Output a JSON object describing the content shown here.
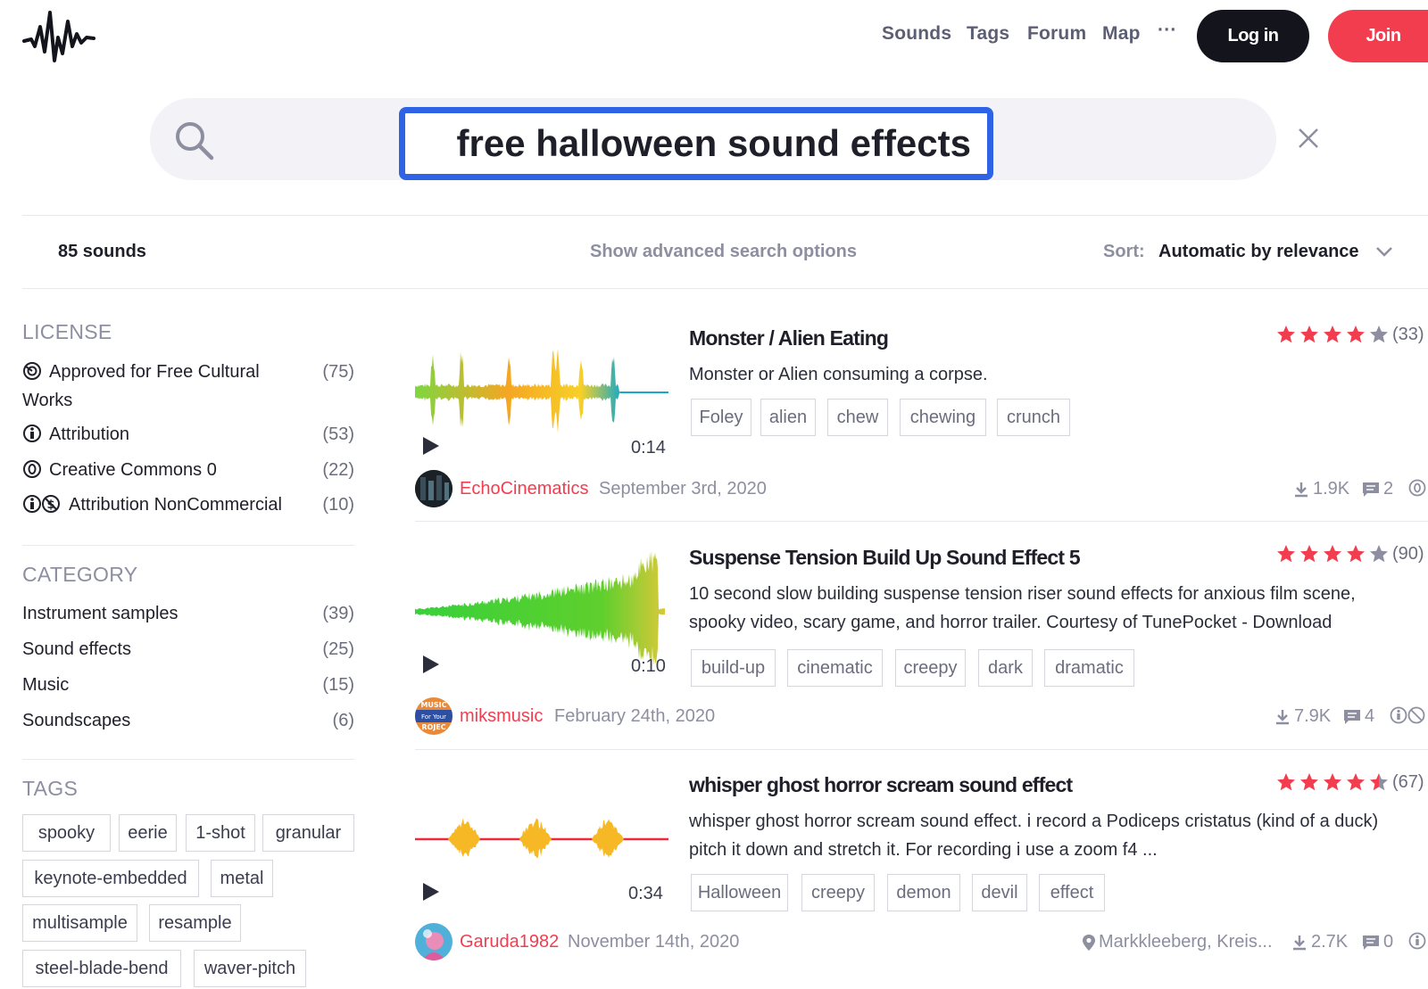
{
  "nav": {
    "links": [
      "Sounds",
      "Tags",
      "Forum",
      "Map"
    ],
    "more": "···",
    "login_label": "Log in",
    "join_label": "Join"
  },
  "search": {
    "query": "free halloween sound effects"
  },
  "results_bar": {
    "count": "85 sounds",
    "advanced": "Show advanced search options",
    "sort_label": "Sort:",
    "sort_value": "Automatic by relevance"
  },
  "sidebar": {
    "license": {
      "title": "LICENSE",
      "items": [
        {
          "label_line1": "Approved for Free Cultural",
          "label_line2": "Works",
          "count": "(75)",
          "icon": "free-culture-icon"
        },
        {
          "label": "Attribution",
          "count": "(53)",
          "icon": "attribution-icon"
        },
        {
          "label": "Creative Commons 0",
          "count": "(22)",
          "icon": "cc0-icon"
        },
        {
          "label": "Attribution NonCommercial",
          "count": "(10)",
          "icon": "attribution-noncommercial-icon"
        }
      ]
    },
    "category": {
      "title": "CATEGORY",
      "items": [
        {
          "label": "Instrument samples",
          "count": "(39)"
        },
        {
          "label": "Sound effects",
          "count": "(25)"
        },
        {
          "label": "Music",
          "count": "(15)"
        },
        {
          "label": "Soundscapes",
          "count": "(6)"
        }
      ]
    },
    "tags": {
      "title": "TAGS",
      "items": [
        "spooky",
        "eerie",
        "1-shot",
        "granular",
        "keynote-embedded",
        "metal",
        "multisample",
        "resample",
        "steel-blade-bend",
        "waver-pitch"
      ]
    }
  },
  "colors": {
    "accent": "#f23d4f",
    "search_focus": "#2f63e6",
    "dark": "#14151c"
  },
  "results": [
    {
      "title": "Monster / Alien Eating",
      "description": [
        "Monster or Alien consuming a corpse."
      ],
      "tags": [
        "Foley",
        "alien",
        "chew",
        "chewing",
        "crunch"
      ],
      "duration": "0:14",
      "rating": 4,
      "rating_count": "(33)",
      "user": "EchoCinematics",
      "date": "September 3rd, 2020",
      "downloads": "1.9K",
      "comments": "2"
    },
    {
      "title": "Suspense Tension Build Up Sound Effect 5",
      "description": [
        "10 second slow building suspense tension riser sound effects for anxious film scene,",
        "spooky video, scary game, and horror trailer. Courtesy of TunePocket - Download"
      ],
      "tags": [
        "build-up",
        "cinematic",
        "creepy",
        "dark",
        "dramatic"
      ],
      "duration": "0:10",
      "rating": 4,
      "rating_count": "(90)",
      "user": "miksmusic",
      "avatar_text": [
        "MUSIC",
        "For Your",
        "ROJEC"
      ],
      "date": "February 24th, 2020",
      "downloads": "7.9K",
      "comments": "4"
    },
    {
      "title": "whisper ghost horror scream sound effect",
      "description": [
        "whisper ghost horror scream sound effect. i record a Podiceps cristatus (kind of a duck)",
        "pitch it down and stretch it. For recording i use a zoom f4 ..."
      ],
      "tags": [
        "Halloween",
        "creepy",
        "demon",
        "devil",
        "effect"
      ],
      "duration": "0:34",
      "rating": 4.5,
      "rating_count": "(67)",
      "user": "Garuda1982",
      "date": "November 14th, 2020",
      "location": "Markkleeberg, Kreis...",
      "downloads": "2.7K",
      "comments": "0"
    }
  ]
}
